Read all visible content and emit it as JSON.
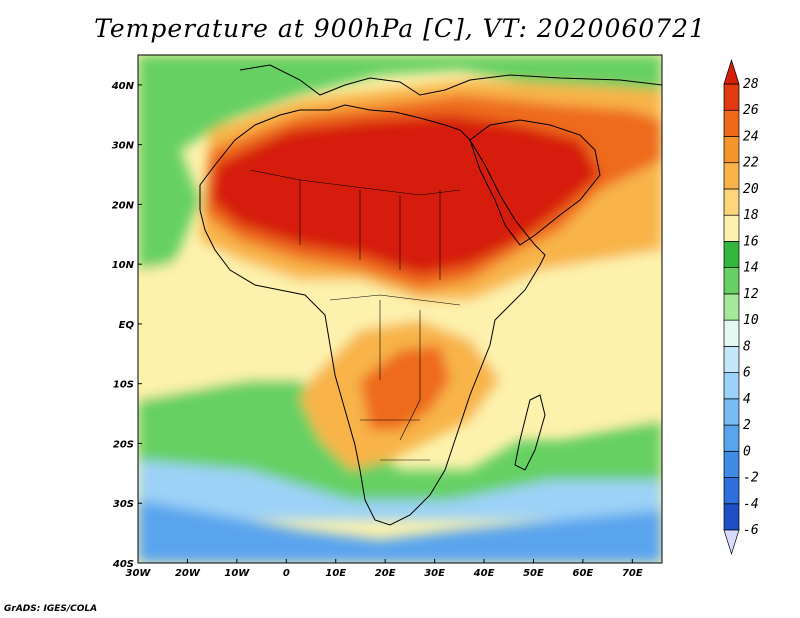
{
  "title": "Temperature at 900hPa [C], VT: 2020060721",
  "credit": "GrADS: IGES/COLA",
  "map": {
    "lon_range": [
      -30,
      76
    ],
    "lat_range": [
      -40,
      45
    ],
    "lon_ticks": [
      {
        "value": -30,
        "label": "30W"
      },
      {
        "value": -20,
        "label": "20W"
      },
      {
        "value": -10,
        "label": "10W"
      },
      {
        "value": 0,
        "label": "0"
      },
      {
        "value": 10,
        "label": "10E"
      },
      {
        "value": 20,
        "label": "20E"
      },
      {
        "value": 30,
        "label": "30E"
      },
      {
        "value": 40,
        "label": "40E"
      },
      {
        "value": 50,
        "label": "50E"
      },
      {
        "value": 60,
        "label": "60E"
      },
      {
        "value": 70,
        "label": "70E"
      }
    ],
    "lat_ticks": [
      {
        "value": 40,
        "label": "40N"
      },
      {
        "value": 30,
        "label": "30N"
      },
      {
        "value": 20,
        "label": "20N"
      },
      {
        "value": 10,
        "label": "10N"
      },
      {
        "value": 0,
        "label": "EQ"
      },
      {
        "value": -10,
        "label": "10S"
      },
      {
        "value": -20,
        "label": "20S"
      },
      {
        "value": -30,
        "label": "30S"
      },
      {
        "value": -40,
        "label": "40S"
      }
    ]
  },
  "colorbar": {
    "levels": [
      -6,
      -4,
      -2,
      0,
      2,
      4,
      6,
      8,
      10,
      12,
      14,
      16,
      18,
      20,
      22,
      24,
      26,
      28
    ],
    "colors": [
      "#0a1a78",
      "#1f4fc4",
      "#2f6fdc",
      "#3f8be6",
      "#5aa4ee",
      "#78bcf3",
      "#9cd2f7",
      "#c4e7fa",
      "#e6f8f2",
      "#a4e89a",
      "#66d064",
      "#33b63c",
      "#fdf2ad",
      "#fbd67b",
      "#f8b44a",
      "#f5962d",
      "#ee6a1a",
      "#e23a10",
      "#d61e08"
    ],
    "under_color": "#d6dcfa",
    "over_color": "#d61e08"
  },
  "field_colors": {
    "ocean_south": "#5aa4ee",
    "ocean_mid": "#9cd2f7",
    "band_green": "#66d064",
    "band_yellow": "#fdf2ad",
    "warm": "#f8b44a",
    "hot": "#ee6a1a",
    "hottest": "#d61e08"
  }
}
